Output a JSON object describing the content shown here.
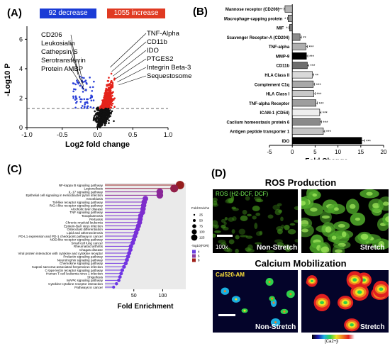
{
  "panels": {
    "a": {
      "label": "(A)",
      "decrease_label": "92 decrease",
      "increase_label": "1055 increase",
      "decrease_color": "#1a3bd6",
      "increase_color": "#e03a22",
      "left_annotations": [
        "CD206",
        "Leukosialin",
        "Cathepsin S",
        "Serotransferrin",
        "Protein AMBP"
      ],
      "right_annotations": [
        "TNF-Alpha",
        "CD11b",
        "IDO",
        "PTGES2",
        "Integrin Beta-3",
        "Sequestosome-1"
      ]
    },
    "b": {
      "label": "(B)"
    },
    "c": {
      "label": "(C)"
    },
    "d": {
      "label": "(D)",
      "ros_title": "ROS Production",
      "ros_stain": "ROS (H2-DCF, DCF)",
      "magnification": "100x",
      "calcium_title": "Calcium Mobilization",
      "calcium_stain": "Cal520-AM",
      "non_stretch": "Non-Stretch",
      "stretch": "Stretch",
      "colorbar_label": "[Ca2+]i"
    }
  },
  "chart_data": [
    {
      "type": "scatter",
      "subtype": "volcano",
      "xlabel": "Log2 fold change",
      "ylabel": "-Log10 P",
      "xlim": [
        -1.0,
        1.0
      ],
      "ylim": [
        0,
        6.5
      ],
      "xticks": [
        "-1.0",
        "-0.5",
        "0.0",
        "0.5",
        "1.0"
      ],
      "yticks": [
        "0",
        "2",
        "4",
        "6"
      ],
      "threshold_y": 1.3,
      "counts": {
        "decrease": 92,
        "increase": 1055
      },
      "colors": {
        "decrease": "#2a3fd8",
        "increase": "#e4231b",
        "ns": "#111111"
      },
      "labeled_points": [
        {
          "label": "CD206",
          "x": -0.28,
          "y": 3.6
        },
        {
          "label": "Leukosialin",
          "x": -0.25,
          "y": 3.3
        },
        {
          "label": "Cathepsin S",
          "x": -0.22,
          "y": 3.0
        },
        {
          "label": "Serotransferrin",
          "x": -0.2,
          "y": 2.8
        },
        {
          "label": "Protein AMBP",
          "x": -0.18,
          "y": 2.5
        },
        {
          "label": "TNF-Alpha",
          "x": 0.18,
          "y": 4.1
        },
        {
          "label": "CD11b",
          "x": 0.2,
          "y": 3.8
        },
        {
          "label": "IDO",
          "x": 0.22,
          "y": 3.5
        },
        {
          "label": "PTGES2",
          "x": 0.25,
          "y": 3.3
        },
        {
          "label": "Integrin Beta-3",
          "x": 0.28,
          "y": 3.1
        },
        {
          "label": "Sequestosome-1",
          "x": 0.3,
          "y": 2.9
        }
      ]
    },
    {
      "type": "bar",
      "orientation": "horizontal",
      "xlabel": "Fold Change",
      "xlim": [
        -5,
        20
      ],
      "xticks": [
        -5,
        0,
        5,
        10,
        15,
        20
      ],
      "categories": [
        "Mannose receptor (CD206)",
        "Macrophage-capping protein",
        "MIF",
        "Scavenger Receptor-A (CD204)",
        "TNF-alpha",
        "MMP-9",
        "CD11b",
        "HLA Class II",
        "Complement C1q",
        "HLA Class I",
        "TNF-alpha Receptor",
        "ICAM-1 (CD54)",
        "Caclium homeostasis protein 6",
        "Antigen peptide transporter 1",
        "IDO"
      ],
      "values": [
        -1.6,
        -0.9,
        -0.6,
        1.7,
        3.0,
        3.1,
        3.3,
        4.4,
        4.6,
        4.7,
        5.2,
        6.0,
        6.1,
        6.8,
        15.2
      ],
      "errors": [
        0.2,
        0.15,
        0.1,
        0.3,
        0.3,
        0.3,
        0.3,
        0.3,
        0.3,
        0.3,
        0.3,
        0.3,
        0.3,
        0.3,
        0.6
      ],
      "significance": [
        "***",
        "*",
        "*",
        "**",
        "***",
        "***",
        "***",
        "**",
        "***",
        "***",
        "***",
        "***",
        "***",
        "***",
        "***"
      ],
      "fills": [
        "#b5b5b5",
        "#9a9a9a",
        "#7a7a7a",
        "#8c8c8c",
        "#b0b0b0",
        "#000000",
        "#6e6e6e",
        "#d9d9d9",
        "#a8a8a8",
        "#c8c8c8",
        "#9e9e9e",
        "#eeeeee",
        "#8a8a8a",
        "#c4c4c4",
        "#000000"
      ]
    },
    {
      "type": "scatter",
      "subtype": "lollipop",
      "xlabel": "Fold Enrichment",
      "xticks": [
        "50",
        "100"
      ],
      "xlim": [
        0,
        140
      ],
      "categories": [
        "NF-kappa B signaling pathway",
        "Legionellosis",
        "IL-17 signaling pathway",
        "Epithelial cell signaling in Helicobacter pylori infection",
        "Amoebiasis",
        "Toll-like receptor signaling pathway",
        "RIG-I-like receptor signaling pathway",
        "Alcoholic liver disease",
        "TNF signaling pathway",
        "Toxoplasmosis",
        "Pertussis",
        "Chronic myeloid leukemia",
        "Epstein-Barr virus infection",
        "Osteoclast differentiation",
        "Lipid and atherosclerosis",
        "PD-L1 expression and PD-1 checkpoint pathway in cancer",
        "NOD-like receptor signaling pathway",
        "Small cell lung cancer",
        "Rheumatoid arthritis",
        "Chagas disease",
        "Viral protein interaction with cytokine and cytokine receptor",
        "Prolactin signaling pathway",
        "Neurotrophin signaling pathway",
        "Chemokine signaling pathway",
        "Kaposi sarcoma-associated herpesvirus infection",
        "C-type lectin receptor signaling pathway",
        "Human T-cell leukemia virus 1 infection",
        "Shigellosis",
        "MAPK signaling pathway",
        "Cytokine-cytokine receptor interaction",
        "Pathways in cancer"
      ],
      "values": [
        130,
        120,
        95,
        95,
        70,
        68,
        67,
        66,
        65,
        62,
        61,
        60,
        58,
        56,
        54,
        52,
        50,
        48,
        45,
        44,
        42,
        40,
        38,
        36,
        33,
        30,
        28,
        26,
        24,
        20,
        15
      ],
      "legend_size_title": "Fold Enrichment",
      "legend_sizes": [
        "25",
        "50",
        "75",
        "100",
        "125"
      ],
      "legend_color_title": "-log10(FDR)",
      "legend_colors": [
        "4",
        "6",
        "8"
      ],
      "color_low": "#5a3fe0",
      "color_high": "#a0201a"
    }
  ]
}
